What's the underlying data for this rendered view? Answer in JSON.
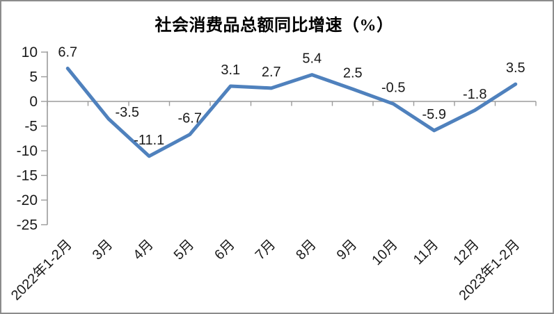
{
  "window": {
    "background_color": "#FFFFFF",
    "border_color": "#8C8C8C"
  },
  "chart_data": {
    "type": "line",
    "title": "社会消费品总额同比增速（%）",
    "categories": [
      "2022年1-2月",
      "3月",
      "4月",
      "5月",
      "6月",
      "7月",
      "8月",
      "9月",
      "10月",
      "11月",
      "12月",
      "2023年1-2月"
    ],
    "values": [
      6.7,
      -3.5,
      -11.1,
      -6.7,
      3.1,
      2.7,
      5.4,
      2.5,
      -0.5,
      -5.9,
      -1.8,
      3.5
    ],
    "data_labels": [
      "6.7",
      "-3.5",
      "-11.1",
      "-6.7",
      "3.1",
      "2.7",
      "5.4",
      "2.5",
      "-0.5",
      "-5.9",
      "-1.8",
      "3.5"
    ],
    "xlabel": "",
    "ylabel": "",
    "ylim": [
      -25,
      10
    ],
    "yticks": [
      10,
      5,
      0,
      -5,
      -10,
      -15,
      -20,
      -25
    ],
    "ytick_labels": [
      "10",
      "5",
      "0",
      "-5",
      "-10",
      "-15",
      "-20",
      "-25"
    ],
    "legend": "none",
    "grid": false,
    "line_color": "#4F81BD",
    "axis_color": "#9B9B9B",
    "text_color": "#1A1A1A"
  }
}
